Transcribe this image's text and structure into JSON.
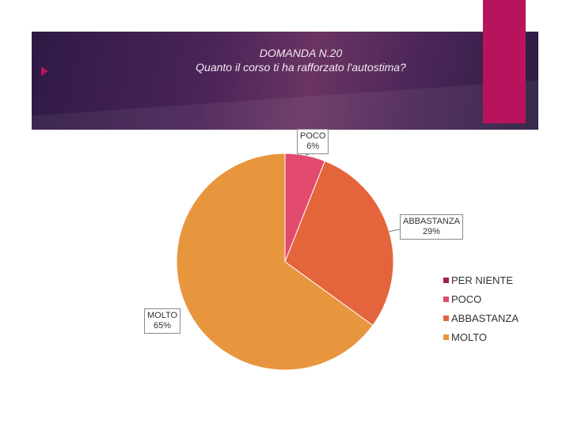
{
  "header": {
    "title_line1": "DOMANDA N.20",
    "title_line2": "Quanto il corso ti ha rafforzato l'autostima?"
  },
  "chart_data": {
    "type": "pie",
    "categories": [
      "PER NIENTE",
      "POCO",
      "ABBASTANZA",
      "MOLTO"
    ],
    "values": [
      0,
      6,
      29,
      65
    ],
    "value_labels": [
      "",
      "6%",
      "29%",
      "65%"
    ],
    "colors": [
      "#a0205a",
      "#e24a6e",
      "#e4643c",
      "#e8963e"
    ],
    "legend_position": "right"
  },
  "theme": {
    "banner_accent": "#b8145e"
  }
}
